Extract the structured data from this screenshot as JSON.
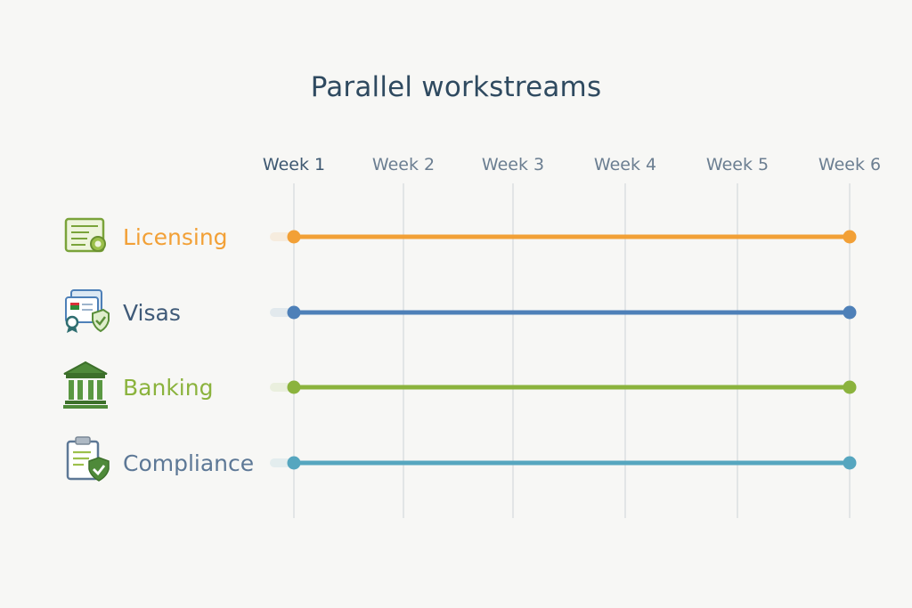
{
  "title": "Parallel workstreams",
  "chart_data": {
    "type": "timeline",
    "columns": [
      "Week 1",
      "Week 2",
      "Week 3",
      "Week 4",
      "Week 5",
      "Week 6"
    ],
    "grid": true,
    "rows": [
      {
        "label": "Licensing",
        "icon": "license-certificate-icon",
        "color": "#f2a036",
        "start": "Week 1",
        "end": "Week 6"
      },
      {
        "label": "Visas",
        "icon": "passport-visa-icon",
        "color": "#4e80b8",
        "start": "Week 1",
        "end": "Week 6"
      },
      {
        "label": "Banking",
        "icon": "bank-building-icon",
        "color": "#8bb33d",
        "start": "Week 1",
        "end": "Week 6"
      },
      {
        "label": "Compliance",
        "icon": "compliance-clipboard-icon",
        "color": "#56a6bf",
        "start": "Week 1",
        "end": "Week 6"
      }
    ],
    "label_colors": {
      "Licensing": "#f2a036",
      "Visas": "#3f5a78",
      "Banking": "#8bb33d",
      "Compliance": "#5d7896"
    }
  }
}
